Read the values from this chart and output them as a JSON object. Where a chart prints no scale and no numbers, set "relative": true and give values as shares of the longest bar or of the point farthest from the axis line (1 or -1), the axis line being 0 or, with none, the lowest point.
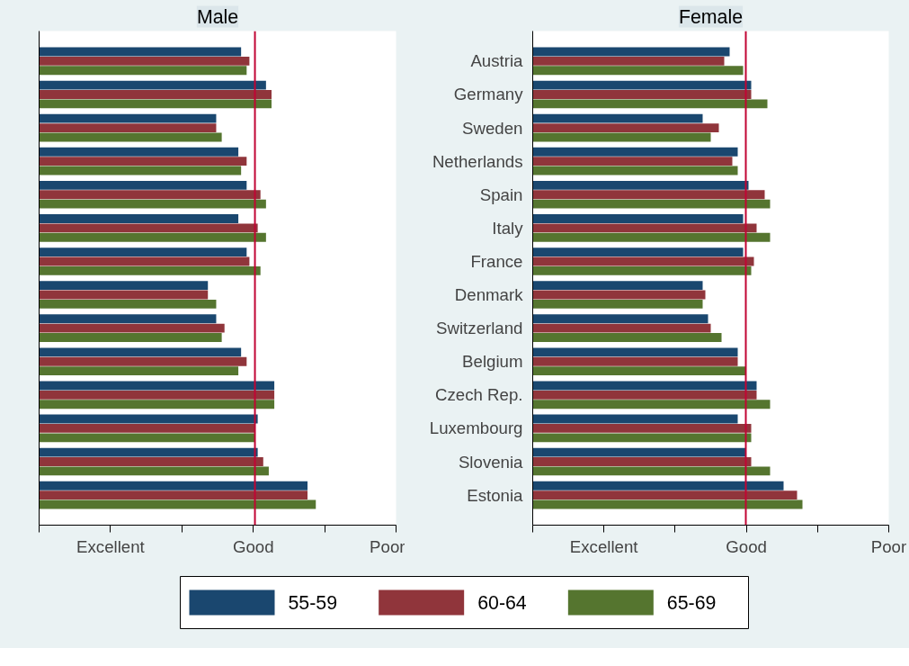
{
  "chart_data": [
    {
      "type": "bar",
      "orientation": "horizontal",
      "relative": true,
      "title": "Male",
      "categories": [
        null,
        null,
        null,
        null,
        null,
        null,
        null,
        null,
        null,
        null,
        null,
        null,
        null,
        null
      ],
      "series": [
        {
          "color": "#1a476f",
          "values": [
            0.73,
            0.82,
            0.64,
            0.72,
            0.75,
            0.72,
            0.75,
            0.61,
            0.64,
            0.73,
            0.85,
            0.79,
            0.79,
            0.97
          ]
        },
        {
          "color": "#90353b",
          "values": [
            0.76,
            0.84,
            0.64,
            0.75,
            0.8,
            0.79,
            0.76,
            0.61,
            0.67,
            0.75,
            0.85,
            0.78,
            0.81,
            0.97
          ]
        },
        {
          "color": "#55752f",
          "values": [
            0.75,
            0.84,
            0.66,
            0.73,
            0.82,
            0.82,
            0.8,
            0.64,
            0.66,
            0.72,
            0.85,
            0.78,
            0.83,
            1
          ]
        }
      ],
      "annotations": [
        "Excellent",
        "Good",
        "Poor"
      ],
      "xlim": [
        0,
        1.29
      ],
      "ref_lines": [
        {
          "axis": "x",
          "value": 0.78,
          "color": "#c10534"
        }
      ],
      "tick_labels": "x"
    },
    {
      "type": "bar",
      "orientation": "horizontal",
      "relative": true,
      "title": "Female",
      "categories": [
        "Austria",
        "Germany",
        "Sweden",
        "Netherlands",
        "Spain",
        "Italy",
        "France",
        "Denmark",
        "Switzerland",
        "Belgium",
        "Czech Rep.",
        "Luxembourg",
        "Slovenia",
        "Estonia"
      ],
      "series": [
        {
          "name": "55-59",
          "color": "#1a476f",
          "values": [
            0.73,
            0.81,
            0.63,
            0.76,
            0.8,
            0.78,
            0.78,
            0.63,
            0.65,
            0.76,
            0.83,
            0.76,
            0.79,
            0.93
          ]
        },
        {
          "name": "60-64",
          "color": "#90353b",
          "values": [
            0.71,
            0.81,
            0.69,
            0.74,
            0.86,
            0.83,
            0.82,
            0.64,
            0.66,
            0.76,
            0.83,
            0.81,
            0.81,
            0.98
          ]
        },
        {
          "name": "65-69",
          "color": "#55752f",
          "values": [
            0.78,
            0.87,
            0.66,
            0.76,
            0.88,
            0.88,
            0.81,
            0.63,
            0.7,
            0.79,
            0.88,
            0.81,
            0.88,
            1
          ]
        }
      ],
      "annotations": [
        "Excellent",
        "Good",
        "Poor"
      ],
      "xlim": [
        0,
        1.32
      ],
      "ref_lines": [
        {
          "axis": "x",
          "value": 0.79,
          "color": "#c10534"
        }
      ],
      "legend": "bottom"
    }
  ]
}
